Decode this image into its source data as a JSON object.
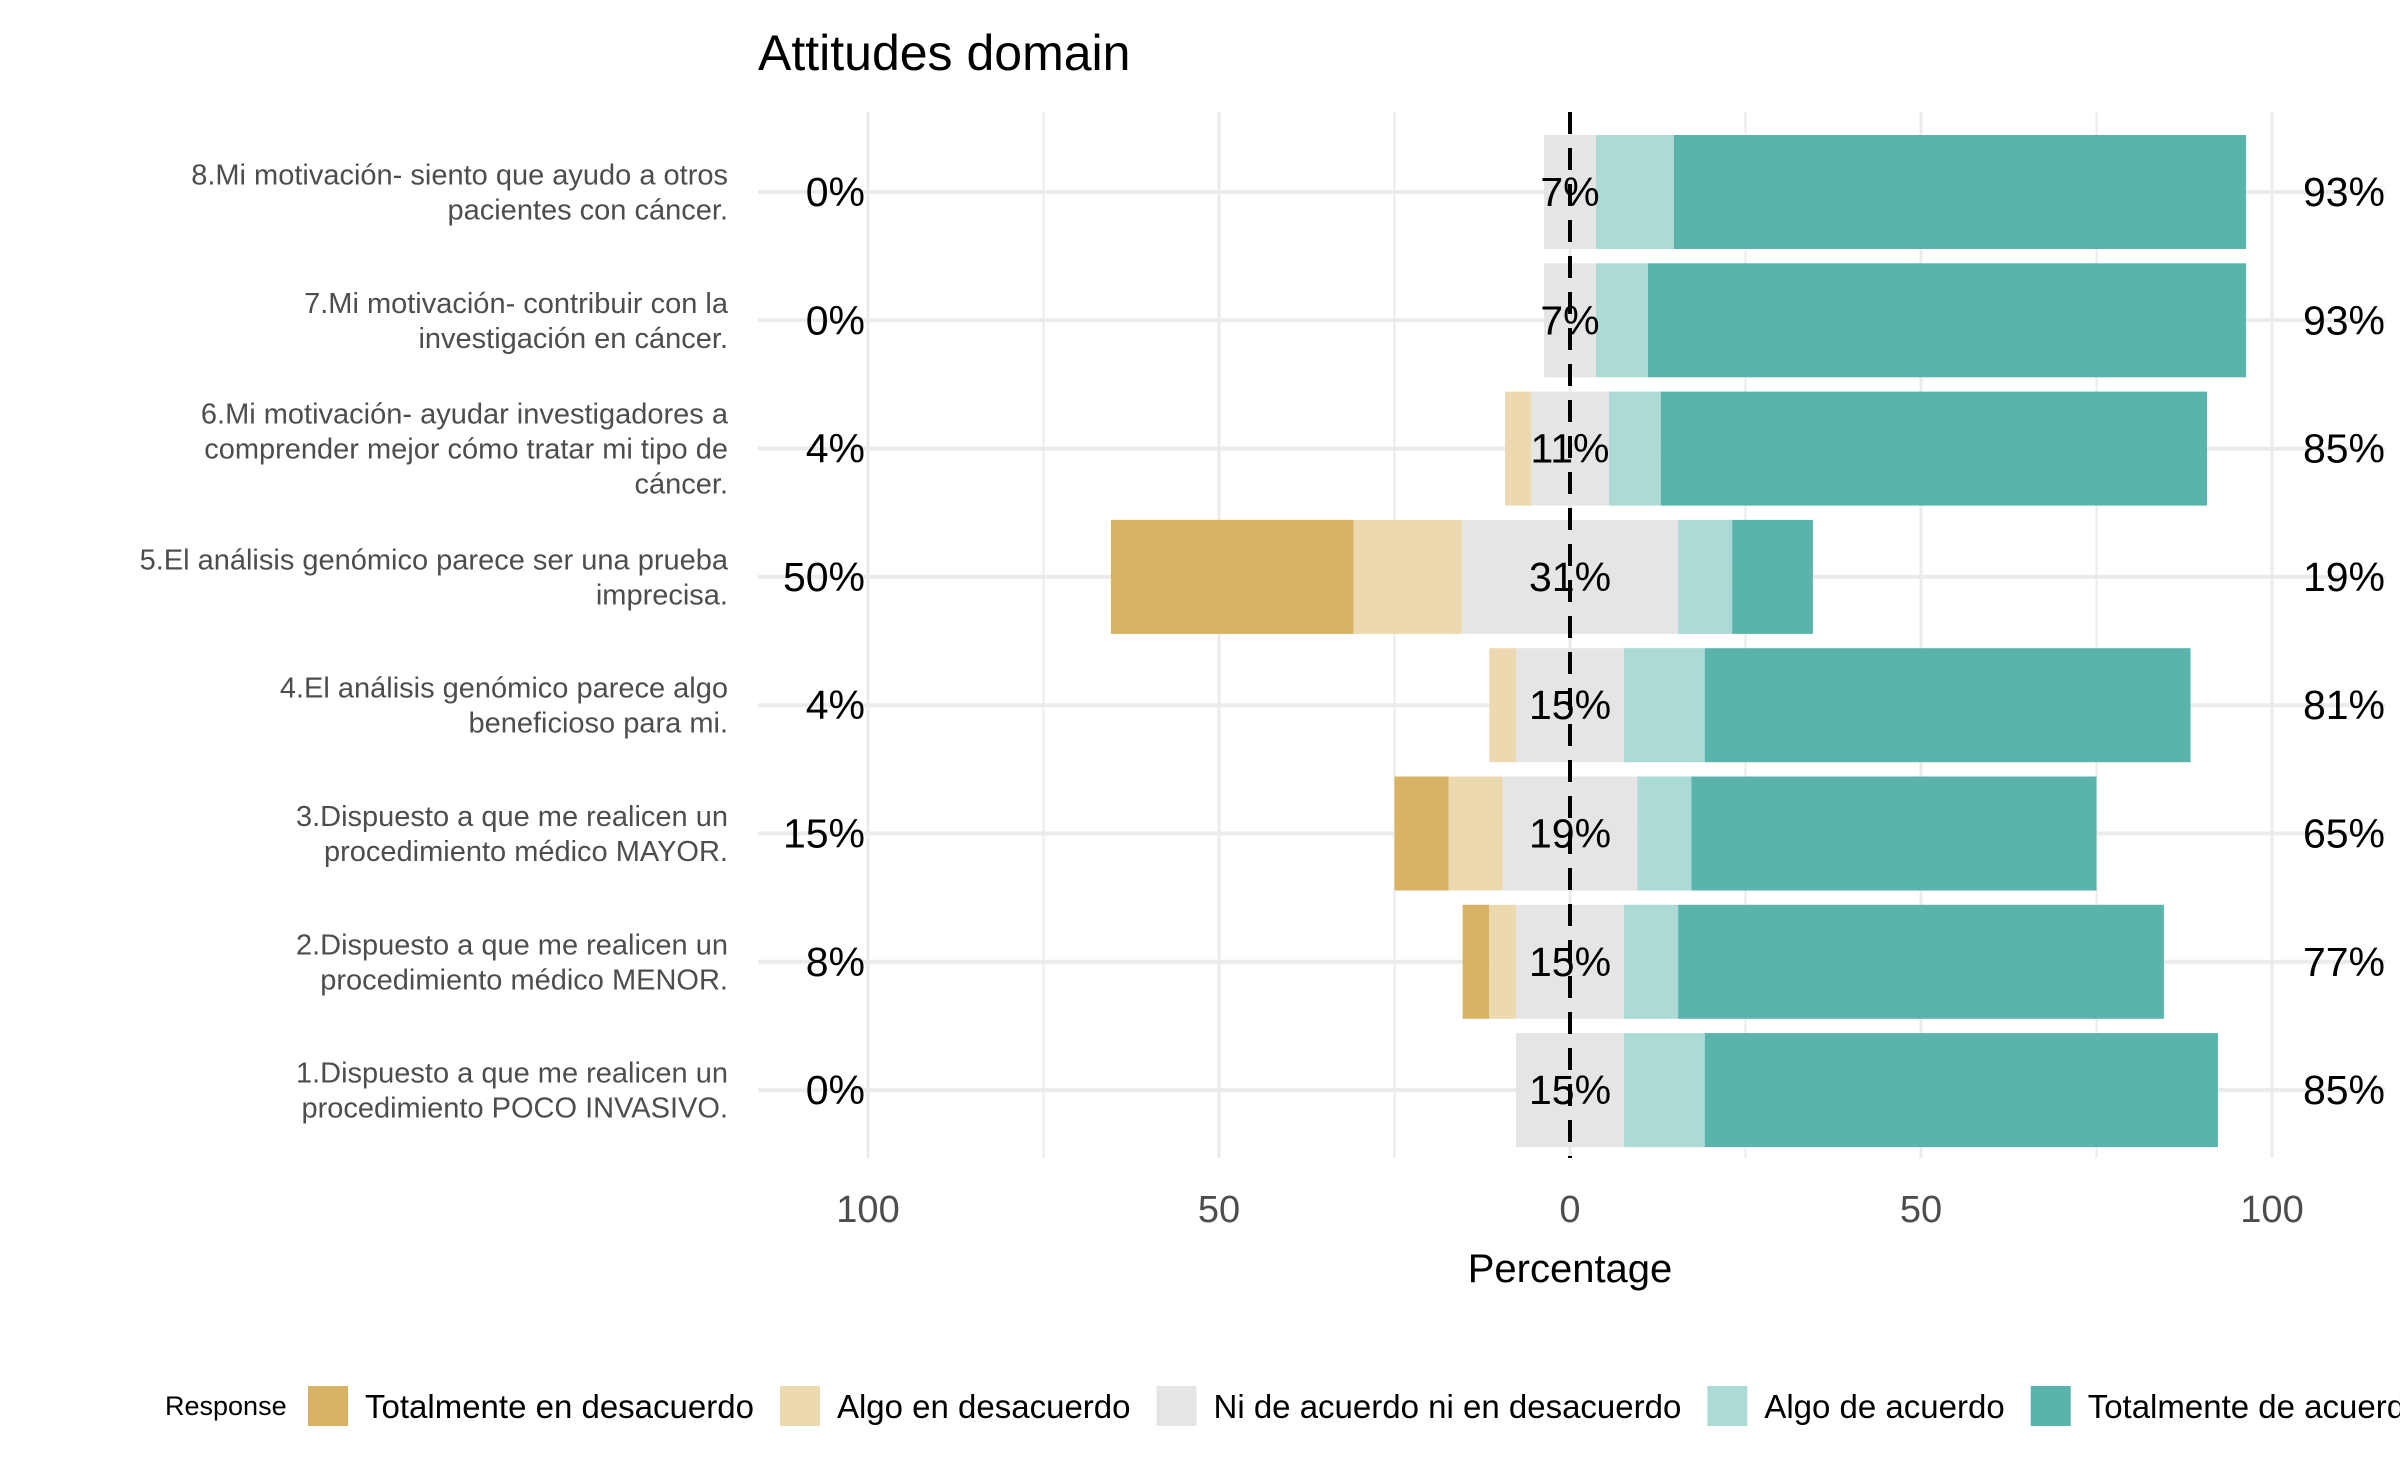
{
  "chart_data": {
    "type": "bar",
    "orientation": "horizontal",
    "stacked": "diverging",
    "title": "Attitudes domain",
    "xlabel": "Percentage",
    "xlim": [
      -100,
      100
    ],
    "x_ticks": [
      -100,
      -50,
      0,
      50,
      100
    ],
    "x_tick_labels": [
      "100",
      "50",
      "0",
      "50",
      "100"
    ],
    "legend_title": "Response",
    "legend_position": "bottom",
    "series": [
      {
        "name": "Totalmente en desacuerdo",
        "color": "#d8b365"
      },
      {
        "name": "Algo en desacuerdo",
        "color": "#ecd9b0"
      },
      {
        "name": "Ni de acuerdo ni en desacuerdo",
        "color": "#e5e5e5"
      },
      {
        "name": "Algo de acuerdo",
        "color": "#acdad5"
      },
      {
        "name": "Totalmente de acuerdo",
        "color": "#5ab4ac"
      }
    ],
    "categories": [
      {
        "label": [
          "8.Mi motivación- siento que ayudo a otros",
          "pacientes con cáncer."
        ],
        "values": [
          0,
          0,
          7.4,
          11.1,
          81.5
        ],
        "left_label": "0%",
        "center_label": "7%",
        "right_label": "93%"
      },
      {
        "label": [
          "7.Mi motivación- contribuir con la",
          "investigación en cáncer."
        ],
        "values": [
          0,
          0,
          7.4,
          7.4,
          85.2
        ],
        "left_label": "0%",
        "center_label": "7%",
        "right_label": "93%"
      },
      {
        "label": [
          "6.Mi motivación- ayudar investigadores a",
          "comprender mejor cómo tratar mi tipo de",
          "cáncer."
        ],
        "values": [
          0,
          3.7,
          11.1,
          7.4,
          77.8
        ],
        "left_label": "4%",
        "center_label": "11%",
        "right_label": "85%"
      },
      {
        "label": [
          "5.El análisis genómico parece ser una prueba",
          "imprecisa."
        ],
        "values": [
          34.6,
          15.4,
          30.8,
          7.7,
          11.5
        ],
        "left_label": "50%",
        "center_label": "31%",
        "right_label": "19%"
      },
      {
        "label": [
          "4.El análisis genómico parece algo",
          "beneficioso para mi."
        ],
        "values": [
          0,
          3.8,
          15.4,
          11.5,
          69.2
        ],
        "left_label": "4%",
        "center_label": "15%",
        "right_label": "81%"
      },
      {
        "label": [
          "3.Dispuesto a que me realicen un",
          "procedimiento médico MAYOR."
        ],
        "values": [
          7.7,
          7.7,
          19.2,
          7.7,
          57.7
        ],
        "left_label": "15%",
        "center_label": "19%",
        "right_label": "65%"
      },
      {
        "label": [
          "2.Dispuesto a que me realicen un",
          "procedimiento médico MENOR."
        ],
        "values": [
          3.8,
          3.8,
          15.4,
          7.7,
          69.2
        ],
        "left_label": "8%",
        "center_label": "15%",
        "right_label": "77%"
      },
      {
        "label": [
          "1.Dispuesto a que me realicen un",
          "procedimiento POCO INVASIVO."
        ],
        "values": [
          0,
          0,
          15.4,
          11.5,
          73.1
        ],
        "left_label": "0%",
        "center_label": "15%",
        "right_label": "85%"
      }
    ]
  }
}
